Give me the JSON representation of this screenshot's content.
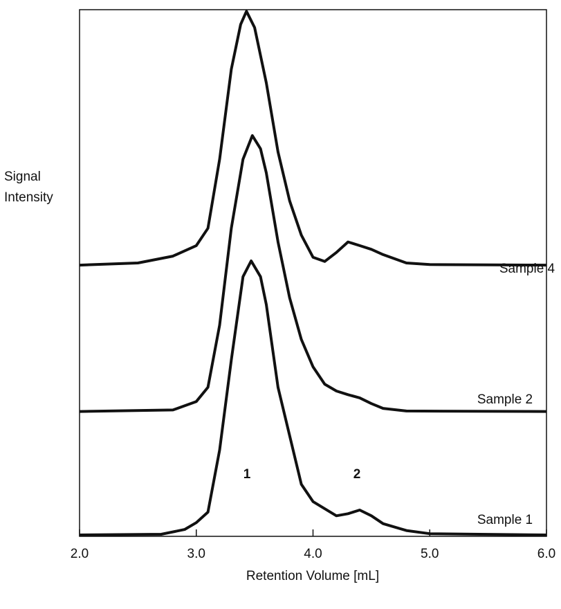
{
  "chart_data": {
    "type": "line",
    "y_label": [
      "Signal",
      "Intensity"
    ],
    "x_label": "Retention Volume [mL]",
    "annotations": [
      "1",
      "2"
    ],
    "xlim": [
      2,
      6
    ],
    "xticks": [
      {
        "value": 2,
        "label": "2.0"
      },
      {
        "value": 3,
        "label": "3.0"
      },
      {
        "value": 4,
        "label": "4.0"
      },
      {
        "value": 5,
        "label": "5.0"
      },
      {
        "value": 6,
        "label": "6.0"
      }
    ],
    "ylim": [
      0,
      100
    ],
    "series": [
      {
        "name": "Sample 1",
        "color": "#111111",
        "x": [
          2.0,
          2.7,
          2.9,
          3.0,
          3.1,
          3.2,
          3.3,
          3.4,
          3.47,
          3.55,
          3.6,
          3.7,
          3.9,
          4.0,
          4.2,
          4.3,
          4.4,
          4.5,
          4.6,
          4.8,
          5.0,
          6.0
        ],
        "values": [
          0.26,
          0.4,
          1.3,
          2.6,
          4.6,
          16.4,
          33.5,
          49.3,
          52.3,
          49.3,
          44.0,
          28.3,
          9.9,
          6.6,
          3.9,
          4.3,
          5.0,
          3.9,
          2.4,
          1.1,
          0.5,
          0.26
        ]
      },
      {
        "name": "Sample 2",
        "color": "#111111",
        "x": [
          2.0,
          2.8,
          3.0,
          3.1,
          3.2,
          3.3,
          3.4,
          3.48,
          3.55,
          3.6,
          3.7,
          3.8,
          3.9,
          4.0,
          4.1,
          4.2,
          4.3,
          4.4,
          4.5,
          4.6,
          4.8,
          6.0
        ],
        "values": [
          23.7,
          24.0,
          25.6,
          28.3,
          40.1,
          58.5,
          71.6,
          76.1,
          73.6,
          69.0,
          55.9,
          45.3,
          37.4,
          32.2,
          28.9,
          27.6,
          26.9,
          26.3,
          25.2,
          24.3,
          23.8,
          23.7
        ]
      },
      {
        "name": "Sample 4",
        "color": "#111111",
        "x": [
          2.0,
          2.5,
          2.8,
          3.0,
          3.1,
          3.2,
          3.3,
          3.38,
          3.43,
          3.5,
          3.6,
          3.7,
          3.8,
          3.9,
          4.0,
          4.1,
          4.2,
          4.3,
          4.4,
          4.5,
          4.6,
          4.8,
          5.0,
          6.0
        ],
        "values": [
          51.5,
          51.9,
          53.2,
          55.2,
          58.5,
          71.6,
          88.7,
          97.2,
          99.7,
          96.6,
          86.1,
          73.0,
          63.7,
          57.2,
          53.0,
          52.2,
          53.9,
          55.9,
          55.2,
          54.5,
          53.5,
          51.9,
          51.6,
          51.5
        ]
      }
    ]
  }
}
